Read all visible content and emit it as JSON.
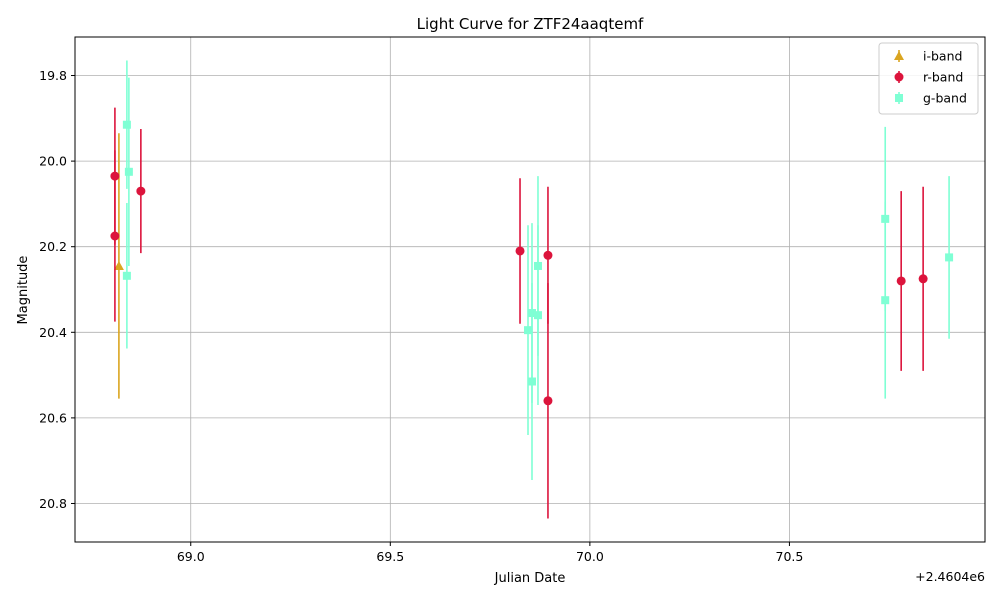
{
  "chart_data": {
    "type": "scatter",
    "title": "Light Curve for ZTF24aaqtemf",
    "xlabel": "Julian Date",
    "ylabel": "Magnitude",
    "x_offset_label": "+2.4604e6",
    "xlim": [
      68.71,
      70.99
    ],
    "ylim": [
      20.89,
      19.71
    ],
    "y_inverted": true,
    "x_ticks": [
      69.0,
      69.5,
      70.0,
      70.5
    ],
    "x_tick_labels": [
      "69.0",
      "69.5",
      "70.0",
      "70.5"
    ],
    "y_ticks": [
      19.8,
      20.0,
      20.2,
      20.4,
      20.6,
      20.8
    ],
    "y_tick_labels": [
      "19.8",
      "20.0",
      "20.2",
      "20.4",
      "20.6",
      "20.8"
    ],
    "grid": true,
    "legend_position": "top-right",
    "series": [
      {
        "name": "i-band",
        "color": "#DAA520",
        "marker": "triangle",
        "points": [
          {
            "x": 68.82,
            "y": 20.245,
            "err": 0.31
          }
        ]
      },
      {
        "name": "r-band",
        "color": "#DC143C",
        "marker": "circle",
        "points": [
          {
            "x": 68.81,
            "y": 20.035,
            "err": 0.16
          },
          {
            "x": 68.81,
            "y": 20.175,
            "err": 0.2
          },
          {
            "x": 68.875,
            "y": 20.07,
            "err": 0.145
          },
          {
            "x": 69.825,
            "y": 20.21,
            "err": 0.17
          },
          {
            "x": 69.895,
            "y": 20.22,
            "err": 0.16
          },
          {
            "x": 69.895,
            "y": 20.56,
            "err": 0.275
          },
          {
            "x": 70.78,
            "y": 20.28,
            "err": 0.21
          },
          {
            "x": 70.835,
            "y": 20.275,
            "err": 0.215
          }
        ]
      },
      {
        "name": "g-band",
        "color": "#7FFFD4",
        "marker": "square",
        "points": [
          {
            "x": 68.84,
            "y": 19.915,
            "err": 0.15
          },
          {
            "x": 68.845,
            "y": 20.025,
            "err": 0.22
          },
          {
            "x": 68.84,
            "y": 20.268,
            "err": 0.17
          },
          {
            "x": 69.845,
            "y": 20.395,
            "err": 0.245
          },
          {
            "x": 69.855,
            "y": 20.355,
            "err": 0.21
          },
          {
            "x": 69.855,
            "y": 20.515,
            "err": 0.23
          },
          {
            "x": 69.87,
            "y": 20.36,
            "err": 0.21
          },
          {
            "x": 69.87,
            "y": 20.245,
            "err": 0.21
          },
          {
            "x": 70.74,
            "y": 20.135,
            "err": 0.215
          },
          {
            "x": 70.74,
            "y": 20.325,
            "err": 0.23
          },
          {
            "x": 70.9,
            "y": 20.225,
            "err": 0.19
          }
        ]
      }
    ]
  }
}
